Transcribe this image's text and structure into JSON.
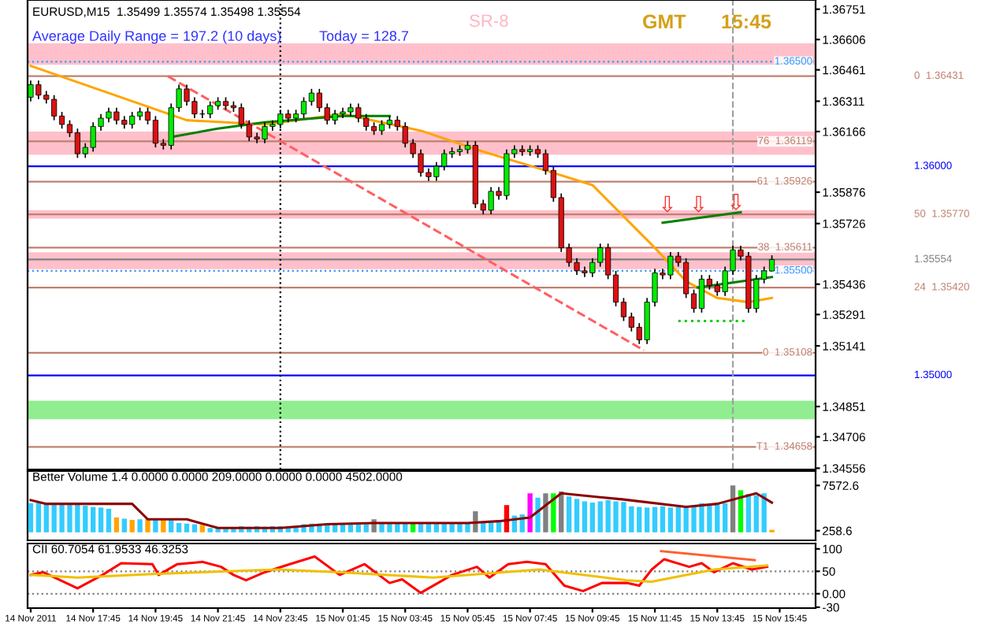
{
  "chart_data": [
    {
      "type": "candlestick",
      "title": "EURUSD,M15  1.35499 1.35574 1.35498 1.35554",
      "annotations": [
        "Average Daily Range = 197.2 (10 days)",
        "Today = 128.7",
        "SR-8",
        "GMT",
        "15:45",
        {
          "text": "⇩",
          "x": "2011-11-15T12:09",
          "y": 1.3576
        },
        {
          "text": "⇩",
          "x": "2011-11-15T13:09",
          "y": 1.3576
        },
        {
          "text": "⇩",
          "x": "2011-11-15T14:21",
          "y": 1.3577
        }
      ],
      "x": [
        "2011-11-14T15:45",
        "2011-11-14T16:00",
        "2011-11-14T16:15",
        "2011-11-14T16:30",
        "2011-11-14T16:45",
        "2011-11-14T17:00",
        "2011-11-14T17:15",
        "2011-11-14T17:30",
        "2011-11-14T17:45",
        "2011-11-14T18:00",
        "2011-11-14T18:15",
        "2011-11-14T18:30",
        "2011-11-14T18:45",
        "2011-11-14T19:00",
        "2011-11-14T19:15",
        "2011-11-14T19:30",
        "2011-11-14T19:45",
        "2011-11-14T20:00",
        "2011-11-14T20:15",
        "2011-11-14T20:30",
        "2011-11-14T20:45",
        "2011-11-14T21:00",
        "2011-11-14T21:15",
        "2011-11-14T21:30",
        "2011-11-14T21:45",
        "2011-11-14T22:00",
        "2011-11-14T22:15",
        "2011-11-14T22:30",
        "2011-11-14T22:45",
        "2011-11-14T23:00",
        "2011-11-14T23:15",
        "2011-11-14T23:30",
        "2011-11-14T23:45",
        "2011-11-15T00:00",
        "2011-11-15T00:15",
        "2011-11-15T00:30",
        "2011-11-15T00:45",
        "2011-11-15T01:00",
        "2011-11-15T01:15",
        "2011-11-15T01:30",
        "2011-11-15T01:45",
        "2011-11-15T02:00",
        "2011-11-15T02:15",
        "2011-11-15T02:30",
        "2011-11-15T02:45",
        "2011-11-15T03:00",
        "2011-11-15T03:15",
        "2011-11-15T03:30",
        "2011-11-15T03:45",
        "2011-11-15T04:00",
        "2011-11-15T04:15",
        "2011-11-15T04:30",
        "2011-11-15T04:45",
        "2011-11-15T05:00",
        "2011-11-15T05:15",
        "2011-11-15T05:30",
        "2011-11-15T05:45",
        "2011-11-15T06:00",
        "2011-11-15T06:15",
        "2011-11-15T06:30",
        "2011-11-15T06:45",
        "2011-11-15T07:00",
        "2011-11-15T07:15",
        "2011-11-15T07:30",
        "2011-11-15T07:45",
        "2011-11-15T08:00",
        "2011-11-15T08:15",
        "2011-11-15T08:30",
        "2011-11-15T08:45",
        "2011-11-15T09:00",
        "2011-11-15T09:15",
        "2011-11-15T09:30",
        "2011-11-15T09:45",
        "2011-11-15T10:00",
        "2011-11-15T10:15",
        "2011-11-15T10:30",
        "2011-11-15T10:45",
        "2011-11-15T11:00",
        "2011-11-15T11:15",
        "2011-11-15T11:30",
        "2011-11-15T11:45",
        "2011-11-15T12:00",
        "2011-11-15T12:15",
        "2011-11-15T12:30",
        "2011-11-15T12:45",
        "2011-11-15T13:00",
        "2011-11-15T13:15",
        "2011-11-15T13:30",
        "2011-11-15T13:45",
        "2011-11-15T14:00",
        "2011-11-15T14:15",
        "2011-11-15T14:30",
        "2011-11-15T14:45",
        "2011-11-15T15:00",
        "2011-11-15T15:15",
        "2011-11-15T15:30"
      ],
      "ohlc": [
        [
          1.3633,
          1.3641,
          1.3631,
          1.3639
        ],
        [
          1.3639,
          1.3641,
          1.3632,
          1.3634
        ],
        [
          1.3634,
          1.3636,
          1.363,
          1.3632
        ],
        [
          1.3632,
          1.3634,
          1.3622,
          1.3624
        ],
        [
          1.3624,
          1.3626,
          1.3618,
          1.362
        ],
        [
          1.362,
          1.3622,
          1.3614,
          1.3616
        ],
        [
          1.3616,
          1.3618,
          1.3604,
          1.3606
        ],
        [
          1.3606,
          1.3611,
          1.3604,
          1.3609
        ],
        [
          1.3609,
          1.3621,
          1.3607,
          1.3619
        ],
        [
          1.3619,
          1.3625,
          1.3617,
          1.3623
        ],
        [
          1.3623,
          1.3628,
          1.3621,
          1.3626
        ],
        [
          1.3626,
          1.3628,
          1.362,
          1.3622
        ],
        [
          1.3622,
          1.3624,
          1.3618,
          1.362
        ],
        [
          1.362,
          1.3626,
          1.3618,
          1.3624
        ],
        [
          1.3624,
          1.3628,
          1.3622,
          1.3626
        ],
        [
          1.3626,
          1.3628,
          1.362,
          1.3622
        ],
        [
          1.3622,
          1.3624,
          1.3609,
          1.3611
        ],
        [
          1.3611,
          1.3613,
          1.3608,
          1.361
        ],
        [
          1.361,
          1.363,
          1.3608,
          1.3628
        ],
        [
          1.3628,
          1.3639,
          1.3626,
          1.3637
        ],
        [
          1.3637,
          1.3639,
          1.3629,
          1.3631
        ],
        [
          1.3631,
          1.3633,
          1.3623,
          1.3625
        ],
        [
          1.3625,
          1.3627,
          1.3623,
          1.3625
        ],
        [
          1.3625,
          1.3631,
          1.3623,
          1.3629
        ],
        [
          1.3629,
          1.3633,
          1.3627,
          1.3631
        ],
        [
          1.3631,
          1.3633,
          1.3627,
          1.3629
        ],
        [
          1.3629,
          1.3631,
          1.3626,
          1.3628
        ],
        [
          1.3628,
          1.363,
          1.3618,
          1.362
        ],
        [
          1.362,
          1.3622,
          1.3612,
          1.3614
        ],
        [
          1.3614,
          1.3616,
          1.3611,
          1.3613
        ],
        [
          1.3613,
          1.3621,
          1.3611,
          1.3619
        ],
        [
          1.3619,
          1.3622,
          1.3617,
          1.362
        ],
        [
          1.362,
          1.3627,
          1.3618,
          1.3625
        ],
        [
          1.3625,
          1.3627,
          1.3621,
          1.3623
        ],
        [
          1.3623,
          1.3627,
          1.3621,
          1.3625
        ],
        [
          1.3625,
          1.3633,
          1.3623,
          1.3631
        ],
        [
          1.3631,
          1.3637,
          1.3629,
          1.3635
        ],
        [
          1.3635,
          1.3637,
          1.3626,
          1.3628
        ],
        [
          1.3628,
          1.363,
          1.362,
          1.3622
        ],
        [
          1.3622,
          1.3627,
          1.362,
          1.3625
        ],
        [
          1.3625,
          1.3628,
          1.3623,
          1.3626
        ],
        [
          1.3626,
          1.363,
          1.3624,
          1.3628
        ],
        [
          1.3628,
          1.363,
          1.3621,
          1.3623
        ],
        [
          1.3623,
          1.3625,
          1.3617,
          1.3619
        ],
        [
          1.3619,
          1.3621,
          1.3615,
          1.3617
        ],
        [
          1.3617,
          1.3622,
          1.3615,
          1.362
        ],
        [
          1.362,
          1.3624,
          1.3618,
          1.3622
        ],
        [
          1.3622,
          1.3624,
          1.3617,
          1.3619
        ],
        [
          1.3619,
          1.3621,
          1.3609,
          1.3611
        ],
        [
          1.3611,
          1.3613,
          1.3604,
          1.3606
        ],
        [
          1.3606,
          1.3608,
          1.3595,
          1.3597
        ],
        [
          1.3597,
          1.3599,
          1.3593,
          1.3595
        ],
        [
          1.3595,
          1.3602,
          1.3593,
          1.36
        ],
        [
          1.36,
          1.3608,
          1.3598,
          1.3606
        ],
        [
          1.3606,
          1.3609,
          1.3604,
          1.3607
        ],
        [
          1.3607,
          1.361,
          1.3605,
          1.3608
        ],
        [
          1.3608,
          1.3612,
          1.3606,
          1.361
        ],
        [
          1.361,
          1.3612,
          1.358,
          1.3582
        ],
        [
          1.3582,
          1.3584,
          1.3577,
          1.3579
        ],
        [
          1.3579,
          1.359,
          1.3577,
          1.3588
        ],
        [
          1.3588,
          1.359,
          1.3584,
          1.3586
        ],
        [
          1.3586,
          1.3608,
          1.3584,
          1.3606
        ],
        [
          1.3606,
          1.361,
          1.3604,
          1.3608
        ],
        [
          1.3608,
          1.361,
          1.3605,
          1.3607
        ],
        [
          1.3607,
          1.361,
          1.3605,
          1.3608
        ],
        [
          1.3608,
          1.361,
          1.3604,
          1.3606
        ],
        [
          1.3606,
          1.3608,
          1.3596,
          1.3598
        ],
        [
          1.3598,
          1.36,
          1.3583,
          1.3585
        ],
        [
          1.3585,
          1.3587,
          1.3559,
          1.3561
        ],
        [
          1.3561,
          1.3563,
          1.3552,
          1.3554
        ],
        [
          1.3554,
          1.3556,
          1.3548,
          1.355
        ],
        [
          1.355,
          1.3552,
          1.3547,
          1.3549
        ],
        [
          1.3549,
          1.3556,
          1.3547,
          1.3554
        ],
        [
          1.3554,
          1.3563,
          1.3552,
          1.3561
        ],
        [
          1.3561,
          1.3563,
          1.3546,
          1.3548
        ],
        [
          1.3548,
          1.355,
          1.3533,
          1.3535
        ],
        [
          1.3535,
          1.3537,
          1.3526,
          1.3528
        ],
        [
          1.3528,
          1.353,
          1.3521,
          1.3523
        ],
        [
          1.3523,
          1.3525,
          1.3515,
          1.3517
        ],
        [
          1.3517,
          1.3537,
          1.3515,
          1.3535
        ],
        [
          1.3535,
          1.3551,
          1.3533,
          1.3549
        ],
        [
          1.3549,
          1.3551,
          1.3546,
          1.3548
        ],
        [
          1.3548,
          1.3559,
          1.3546,
          1.3557
        ],
        [
          1.3557,
          1.3559,
          1.3552,
          1.3554
        ],
        [
          1.3554,
          1.3556,
          1.3537,
          1.3539
        ],
        [
          1.3539,
          1.3541,
          1.353,
          1.3532
        ],
        [
          1.3532,
          1.3548,
          1.353,
          1.3546
        ],
        [
          1.3546,
          1.3548,
          1.3541,
          1.3543
        ],
        [
          1.3543,
          1.3545,
          1.3538,
          1.354
        ],
        [
          1.354,
          1.3552,
          1.3538,
          1.355
        ],
        [
          1.355,
          1.3562,
          1.3548,
          1.356
        ],
        [
          1.356,
          1.3562,
          1.3555,
          1.3557
        ],
        [
          1.3557,
          1.3559,
          1.353,
          1.3532
        ],
        [
          1.3532,
          1.3548,
          1.353,
          1.3546
        ],
        [
          1.3546,
          1.3552,
          1.3544,
          1.355
        ],
        [
          1.35499,
          1.35574,
          1.35498,
          1.35554
        ]
      ],
      "series": [
        {
          "type": "line",
          "color": "#ffa500",
          "x": [
            "2011-11-14T15:45",
            "2011-11-14T18:15",
            "2011-11-14T20:45",
            "2011-11-14T23:15",
            "2011-11-15T01:45",
            "2011-11-15T04:15",
            "2011-11-15T06:15",
            "2011-11-15T08:15",
            "2011-11-15T09:45",
            "2011-11-15T11:45",
            "2011-11-15T12:45",
            "2011-11-15T13:45",
            "2011-11-15T14:45",
            "2011-11-15T15:30"
          ],
          "values": [
            1.3648,
            1.3635,
            1.3622,
            1.362,
            1.3625,
            1.3617,
            1.3607,
            1.3598,
            1.3591,
            1.3561,
            1.3545,
            1.3537,
            1.3535,
            1.3537
          ]
        },
        {
          "type": "line",
          "color": "#008000",
          "x": [
            "2011-11-14T20:15",
            "2011-11-14T21:45",
            "2011-11-14T23:15",
            "2011-11-15T01:45",
            "2011-11-15T03:15"
          ],
          "values": [
            1.3614,
            1.3618,
            1.3621,
            1.3624,
            1.3624
          ]
        },
        {
          "type": "line",
          "color": "#008000",
          "x": [
            "2011-11-15T12:00",
            "2011-11-15T14:30"
          ],
          "values": [
            1.3573,
            1.3578
          ]
        },
        {
          "type": "line",
          "color": "#008000",
          "x": [
            "2011-11-15T13:07",
            "2011-11-15T15:30"
          ],
          "values": [
            1.3542,
            1.3547
          ]
        },
        {
          "type": "line",
          "color": "#00cc00",
          "x": [
            "2011-11-15T12:30",
            "2011-11-15T14:45"
          ],
          "values": [
            1.3526,
            1.3526
          ],
          "line_style": "dotted"
        },
        {
          "type": "line",
          "color": "#ff6060",
          "x": [
            "2011-11-14T20:09",
            "2011-11-15T11:24"
          ],
          "values": [
            1.3643,
            1.3512
          ],
          "line_style": "dashed"
        }
      ],
      "bands": [
        {
          "axis": "y",
          "from": 1.36485,
          "to": 1.36588,
          "color": "#ffc0cb"
        },
        {
          "axis": "y",
          "from": 1.36055,
          "to": 1.36166,
          "color": "#ffc0cb"
        },
        {
          "axis": "y",
          "from": 1.3575,
          "to": 1.3579,
          "color": "#ffc0cb"
        },
        {
          "axis": "y",
          "from": 1.35508,
          "to": 1.35589,
          "color": "#ffc0cb"
        },
        {
          "axis": "y",
          "from": 1.3479,
          "to": 1.34879,
          "color": "#90ee90"
        }
      ],
      "ref_lines": [
        {
          "axis": "y",
          "value": 1.365,
          "label": "1.36500",
          "color": "#3399ff",
          "line_style": "dotted"
        },
        {
          "axis": "y",
          "value": 1.36431,
          "label": "0  1.36431",
          "color": "#c08070",
          "line_style": "solid"
        },
        {
          "axis": "y",
          "value": 1.36119,
          "label": "76  1.36119",
          "color": "#c08070",
          "line_style": "solid"
        },
        {
          "axis": "y",
          "value": 1.36,
          "label": "1.36000",
          "color": "#0000ff",
          "line_style": "solid"
        },
        {
          "axis": "y",
          "value": 1.35926,
          "label": "61  1.35926",
          "color": "#c08070",
          "line_style": "solid"
        },
        {
          "axis": "y",
          "value": 1.3577,
          "label": "50  1.35770",
          "color": "#c08070",
          "line_style": "solid"
        },
        {
          "axis": "y",
          "value": 1.35611,
          "label": "38  1.35611",
          "color": "#c08070",
          "line_style": "solid"
        },
        {
          "axis": "y",
          "value": 1.35554,
          "label": "1.35554",
          "color": "#808080",
          "line_style": "solid"
        },
        {
          "axis": "y",
          "value": 1.355,
          "label": "1.35500",
          "color": "#3399ff",
          "line_style": "dotted"
        },
        {
          "axis": "y",
          "value": 1.3542,
          "label": "24  1.35420",
          "color": "#c08070",
          "line_style": "solid"
        },
        {
          "axis": "y",
          "value": 1.35108,
          "label": "0  1.35108",
          "color": "#c08070",
          "line_style": "solid"
        },
        {
          "axis": "y",
          "value": 1.35,
          "label": "1.35000",
          "color": "#0000ff",
          "line_style": "solid"
        },
        {
          "axis": "y",
          "value": 1.34658,
          "label": "T1  1.34658",
          "color": "#c08070",
          "line_style": "solid"
        },
        {
          "axis": "x",
          "value": "2011-11-14T23:45",
          "color": "#000000",
          "line_style": "dotted"
        },
        {
          "axis": "x",
          "value": "2011-11-15T14:15",
          "color": "#a0a0a0",
          "line_style": "dashed"
        }
      ],
      "xlim": [
        "2011-11-14T15:39",
        "2011-11-15T16:54"
      ],
      "ylim": [
        1.3455,
        1.36795
      ],
      "yticks": [
        1.36751,
        1.36606,
        1.36461,
        1.36311,
        1.36166,
        1.35876,
        1.35726,
        1.35436,
        1.35291,
        1.35141,
        1.34851,
        1.34706,
        1.34556
      ],
      "tick_labels": "y",
      "grid": false,
      "legend": false
    },
    {
      "type": "bar",
      "title": "Better Volume 1.4 0.0000 0.0000 209.0000 0.0000 0.0000 4502.0000",
      "x": [
        "2011-11-14T15:45",
        "2011-11-14T16:00",
        "2011-11-14T16:15",
        "2011-11-14T16:30",
        "2011-11-14T16:45",
        "2011-11-14T17:00",
        "2011-11-14T17:15",
        "2011-11-14T17:30",
        "2011-11-14T17:45",
        "2011-11-14T18:00",
        "2011-11-14T18:15",
        "2011-11-14T18:30",
        "2011-11-14T18:45",
        "2011-11-14T19:00",
        "2011-11-14T19:15",
        "2011-11-14T19:30",
        "2011-11-14T19:45",
        "2011-11-14T20:00",
        "2011-11-14T20:15",
        "2011-11-14T20:30",
        "2011-11-14T20:45",
        "2011-11-14T21:00",
        "2011-11-14T21:15",
        "2011-11-14T21:30",
        "2011-11-14T21:45",
        "2011-11-14T22:00",
        "2011-11-14T22:15",
        "2011-11-14T22:30",
        "2011-11-14T22:45",
        "2011-11-14T23:00",
        "2011-11-14T23:15",
        "2011-11-14T23:30",
        "2011-11-14T23:45",
        "2011-11-15T00:00",
        "2011-11-15T00:15",
        "2011-11-15T00:30",
        "2011-11-15T00:45",
        "2011-11-15T01:00",
        "2011-11-15T01:15",
        "2011-11-15T01:30",
        "2011-11-15T01:45",
        "2011-11-15T02:00",
        "2011-11-15T02:15",
        "2011-11-15T02:30",
        "2011-11-15T02:45",
        "2011-11-15T03:00",
        "2011-11-15T03:15",
        "2011-11-15T03:30",
        "2011-11-15T03:45",
        "2011-11-15T04:00",
        "2011-11-15T04:15",
        "2011-11-15T04:30",
        "2011-11-15T04:45",
        "2011-11-15T05:00",
        "2011-11-15T05:15",
        "2011-11-15T05:30",
        "2011-11-15T05:45",
        "2011-11-15T06:00",
        "2011-11-15T06:15",
        "2011-11-15T06:30",
        "2011-11-15T06:45",
        "2011-11-15T07:00",
        "2011-11-15T07:15",
        "2011-11-15T07:30",
        "2011-11-15T07:45",
        "2011-11-15T08:00",
        "2011-11-15T08:15",
        "2011-11-15T08:30",
        "2011-11-15T08:45",
        "2011-11-15T09:00",
        "2011-11-15T09:15",
        "2011-11-15T09:30",
        "2011-11-15T09:45",
        "2011-11-15T10:00",
        "2011-11-15T10:15",
        "2011-11-15T10:30",
        "2011-11-15T10:45",
        "2011-11-15T11:00",
        "2011-11-15T11:15",
        "2011-11-15T11:30",
        "2011-11-15T11:45",
        "2011-11-15T12:00",
        "2011-11-15T12:15",
        "2011-11-15T12:30",
        "2011-11-15T12:45",
        "2011-11-15T13:00",
        "2011-11-15T13:15",
        "2011-11-15T13:30",
        "2011-11-15T13:45",
        "2011-11-15T14:00",
        "2011-11-15T14:15",
        "2011-11-15T14:30",
        "2011-11-15T14:45",
        "2011-11-15T15:00",
        "2011-11-15T15:15",
        "2011-11-15T15:30"
      ],
      "values": [
        4700,
        4800,
        4600,
        4600,
        4600,
        4700,
        4500,
        4300,
        4100,
        4000,
        3800,
        2400,
        2200,
        2000,
        2100,
        2200,
        2000,
        2100,
        2000,
        1500,
        1400,
        1300,
        1200,
        700,
        700,
        600,
        700,
        1000,
        900,
        1000,
        900,
        1000,
        1000,
        900,
        1000,
        1300,
        1400,
        1400,
        1300,
        1300,
        1400,
        1400,
        1300,
        1300,
        2100,
        1500,
        1500,
        1400,
        1500,
        1500,
        1400,
        1500,
        1500,
        1500,
        1400,
        1500,
        1500,
        3400,
        1600,
        1700,
        1800,
        4400,
        2700,
        2900,
        6300,
        5600,
        6300,
        6300,
        6600,
        5800,
        5400,
        5000,
        4800,
        5000,
        5200,
        5000,
        4900,
        4200,
        4100,
        4000,
        4100,
        4200,
        4000,
        4100,
        4000,
        4100,
        4700,
        4300,
        4600,
        4700,
        7572.6,
        6800,
        6200,
        6000,
        6300,
        400
      ],
      "colors": [
        "#33ccff",
        "#33ccff",
        "#33ccff",
        "#33ccff",
        "#33ccff",
        "#33ccff",
        "#33ccff",
        "#33ccff",
        "#33ccff",
        "#33ccff",
        "#33ccff",
        "#ffa500",
        "#33ccff",
        "#ffa500",
        "#33ccff",
        "#ffa500",
        "#33ccff",
        "#ffa500",
        "#33ccff",
        "#33ccff",
        "#33ccff",
        "#33ccff",
        "#ffa500",
        "#33ccff",
        "#33ccff",
        "#33ccff",
        "#33ccff",
        "#33ccff",
        "#33ccff",
        "#33ccff",
        "#33ccff",
        "#33ccff",
        "#33ccff",
        "#33ccff",
        "#33ccff",
        "#33ccff",
        "#33ccff",
        "#33ccff",
        "#33ccff",
        "#33ccff",
        "#33ccff",
        "#33ccff",
        "#33ccff",
        "#33ccff",
        "#808080",
        "#33ccff",
        "#33ccff",
        "#33ccff",
        "#33ccff",
        "#00ff00",
        "#33ccff",
        "#33ccff",
        "#33ccff",
        "#33ccff",
        "#33ccff",
        "#33ccff",
        "#33ccff",
        "#808080",
        "#33ccff",
        "#33ccff",
        "#33ccff",
        "#ff0000",
        "#33ccff",
        "#33ccff",
        "#ff00ff",
        "#33ccff",
        "#808080",
        "#00ff00",
        "#808080",
        "#33ccff",
        "#33ccff",
        "#33ccff",
        "#33ccff",
        "#33ccff",
        "#33ccff",
        "#33ccff",
        "#33ccff",
        "#33ccff",
        "#33ccff",
        "#33ccff",
        "#33ccff",
        "#33ccff",
        "#33ccff",
        "#33ccff",
        "#33ccff",
        "#33ccff",
        "#33ccff",
        "#33ccff",
        "#33ccff",
        "#33ccff",
        "#808080",
        "#00ff00",
        "#33ccff",
        "#33ccff",
        "#33ccff",
        "#ffa500"
      ],
      "series": [
        {
          "type": "line",
          "color": "#8b0000",
          "x": [
            "2011-11-14T15:45",
            "2011-11-14T16:15",
            "2011-11-14T19:00",
            "2011-11-14T19:30",
            "2011-11-14T20:45",
            "2011-11-14T21:45",
            "2011-11-14T23:45",
            "2011-11-15T01:15",
            "2011-11-15T02:45",
            "2011-11-15T05:45",
            "2011-11-15T06:45",
            "2011-11-15T07:45",
            "2011-11-15T08:45",
            "2011-11-15T10:45",
            "2011-11-15T12:45",
            "2011-11-15T13:45",
            "2011-11-15T15:00",
            "2011-11-15T15:30"
          ],
          "values": [
            5200,
            4600,
            4600,
            2100,
            2100,
            700,
            700,
            1300,
            1500,
            1500,
            1800,
            2400,
            6300,
            5300,
            4100,
            4600,
            6300,
            4800
          ]
        }
      ],
      "xlim": [
        "2011-11-14T15:39",
        "2011-11-15T16:54"
      ],
      "ylim": [
        -1300,
        9900
      ],
      "yticks": [
        7572.6,
        258.6
      ],
      "tick_labels": "y",
      "grid": false,
      "legend": false
    },
    {
      "type": "line",
      "title": "CII 60.7054 61.9533 46.3253",
      "series": [
        {
          "type": "line",
          "color": "#ff0000",
          "x": [
            "2011-11-14T15:45",
            "2011-11-14T16:09",
            "2011-11-14T17:15",
            "2011-11-14T18:03",
            "2011-11-14T18:39",
            "2011-11-14T19:39",
            "2011-11-14T19:51",
            "2011-11-14T20:27",
            "2011-11-14T21:15",
            "2011-11-14T21:51",
            "2011-11-14T22:15",
            "2011-11-14T22:39",
            "2011-11-14T23:15",
            "2011-11-15T00:03",
            "2011-11-15T00:51",
            "2011-11-15T01:39",
            "2011-11-15T02:27",
            "2011-11-15T03:15",
            "2011-11-15T03:39",
            "2011-11-15T04:15",
            "2011-11-15T05:15",
            "2011-11-15T06:03",
            "2011-11-15T06:27",
            "2011-11-15T07:03",
            "2011-11-15T07:39",
            "2011-11-15T08:15",
            "2011-11-15T08:51",
            "2011-11-15T09:27",
            "2011-11-15T10:03",
            "2011-11-15T10:51",
            "2011-11-15T11:15",
            "2011-11-15T11:39",
            "2011-11-15T12:03",
            "2011-11-15T12:51",
            "2011-11-15T13:15",
            "2011-11-15T13:39",
            "2011-11-15T14:15",
            "2011-11-15T14:51",
            "2011-11-15T15:21"
          ],
          "values": [
            42,
            48,
            12,
            42,
            68,
            66,
            42,
            66,
            71,
            60,
            42,
            30,
            48,
            66,
            83,
            42,
            66,
            24,
            32,
            2,
            42,
            60,
            36,
            66,
            71,
            66,
            18,
            6,
            24,
            24,
            18,
            54,
            77,
            60,
            68,
            48,
            68,
            54,
            60
          ]
        },
        {
          "type": "line",
          "color": "#f0c000",
          "x": [
            "2011-11-14T15:45",
            "2011-11-14T17:15",
            "2011-11-14T19:39",
            "2011-11-14T23:39",
            "2011-11-15T01:39",
            "2011-11-15T04:39",
            "2011-11-15T08:03",
            "2011-11-15T10:51",
            "2011-11-15T11:39",
            "2011-11-15T13:39",
            "2011-11-15T15:21"
          ],
          "values": [
            42,
            36,
            44,
            54,
            48,
            36,
            54,
            30,
            27,
            54,
            63
          ]
        },
        {
          "type": "line",
          "color": "#ff6030",
          "x": [
            "2011-11-15T11:57",
            "2011-11-15T14:57"
          ],
          "values": [
            95,
            75
          ]
        }
      ],
      "ref_lines": [
        {
          "axis": "y",
          "value": 50,
          "color": "#808080",
          "line_style": "dotted"
        },
        {
          "axis": "y",
          "value": 0,
          "color": "#808080",
          "line_style": "dotted"
        }
      ],
      "xlim": [
        "2011-11-14T15:39",
        "2011-11-15T16:54"
      ],
      "ylim": [
        -32,
        112
      ],
      "xticks": [
        {
          "value": "2011-11-14T15:45",
          "label": "14 Nov 2011"
        },
        {
          "value": "2011-11-14T17:45",
          "label": "14 Nov 17:45"
        },
        {
          "value": "2011-11-14T19:45",
          "label": "14 Nov 19:45"
        },
        {
          "value": "2011-11-14T21:45",
          "label": "14 Nov 21:45"
        },
        {
          "value": "2011-11-14T23:45",
          "label": "14 Nov 23:45"
        },
        {
          "value": "2011-11-15T01:45",
          "label": "15 Nov 01:45"
        },
        {
          "value": "2011-11-15T03:45",
          "label": "15 Nov 03:45"
        },
        {
          "value": "2011-11-15T05:45",
          "label": "15 Nov 05:45"
        },
        {
          "value": "2011-11-15T07:45",
          "label": "15 Nov 07:45"
        },
        {
          "value": "2011-11-15T09:45",
          "label": "15 Nov 09:45"
        },
        {
          "value": "2011-11-15T11:45",
          "label": "15 Nov 11:45"
        },
        {
          "value": "2011-11-15T13:45",
          "label": "15 Nov 13:45"
        },
        {
          "value": "2011-11-15T15:45",
          "label": "15 Nov 15:45"
        }
      ],
      "yticks": [
        100,
        50,
        {
          "value": 0,
          "label": "0.00"
        },
        -30
      ],
      "grid": false,
      "legend": false
    }
  ]
}
